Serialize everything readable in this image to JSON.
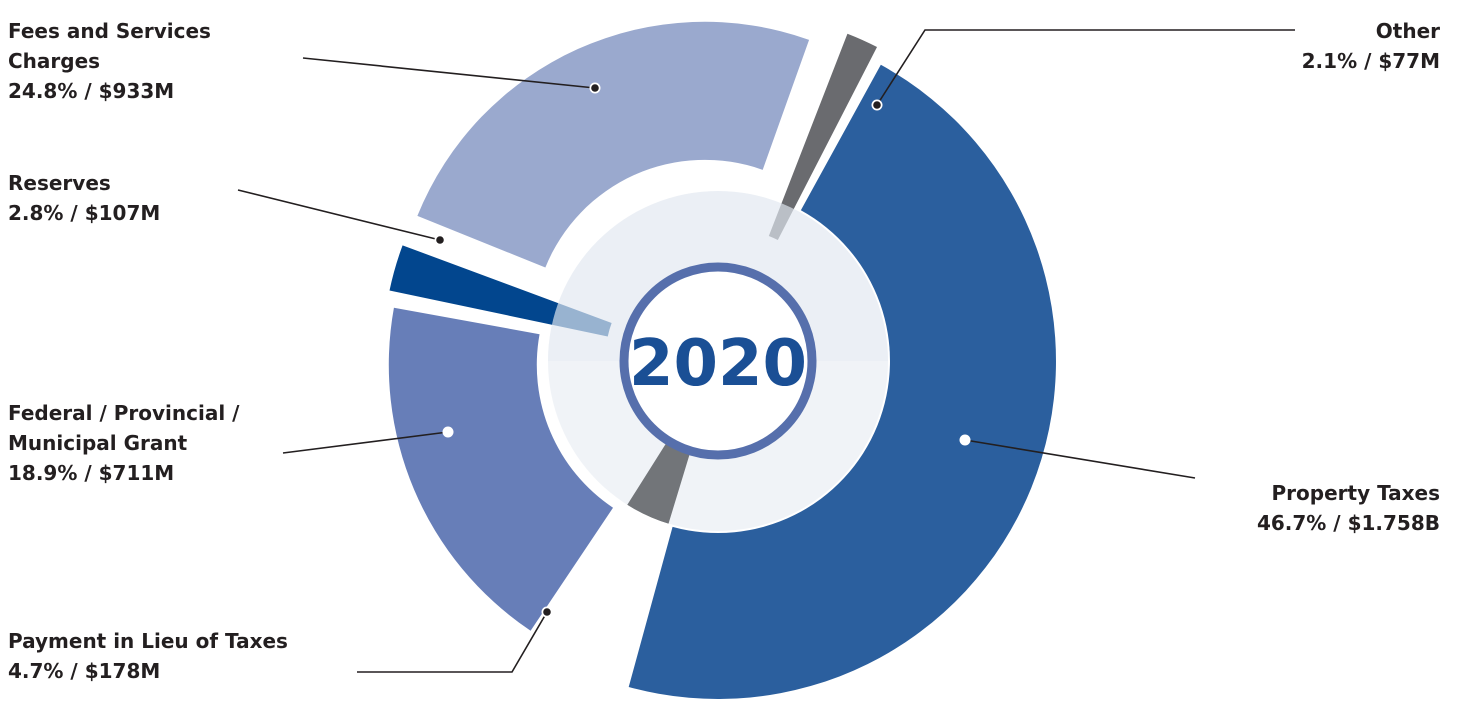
{
  "chart_data": {
    "type": "pie",
    "variant": "exploded-donut",
    "center_label": "2020",
    "slices": [
      {
        "name": "Property Taxes",
        "name_lines": [
          "Property Taxes"
        ],
        "percent": 46.7,
        "amount": "$1.758B",
        "value_label": "46.7% / $1.758B",
        "color": "#2b5f9e",
        "label_side": "right"
      },
      {
        "name": "Payment in Lieu of Taxes",
        "name_lines": [
          "Payment in Lieu of Taxes"
        ],
        "percent": 4.7,
        "amount": "$178M",
        "value_label": "4.7% / $178M",
        "color": "#3e3e3e",
        "label_side": "left"
      },
      {
        "name": "Federal / Provincial / Municipal Grant",
        "name_lines": [
          "Federal / Provincial /",
          "Municipal Grant"
        ],
        "percent": 18.9,
        "amount": "$711M",
        "value_label": "18.9% / $711M",
        "color": "#677eb8",
        "label_side": "left"
      },
      {
        "name": "Reserves",
        "name_lines": [
          "Reserves"
        ],
        "percent": 2.8,
        "amount": "$107M",
        "value_label": "2.8% / $107M",
        "color": "#02468e",
        "label_side": "left"
      },
      {
        "name": "Fees and Services Charges",
        "name_lines": [
          "Fees and Services",
          "Charges"
        ],
        "percent": 24.8,
        "amount": "$933M",
        "value_label": "24.8% / $933M",
        "color": "#9aa9ce",
        "label_side": "left"
      },
      {
        "name": "Other",
        "name_lines": [
          "Other"
        ],
        "percent": 2.1,
        "amount": "$77M",
        "value_label": "2.1% / $77M",
        "color": "#6a6b6f",
        "label_side": "right"
      }
    ]
  },
  "colors": {
    "inner_ring": "#d3dde9",
    "inner_ring_light": "#e6ebf3",
    "center_border": "#566fac",
    "center_text": "#1a4f95",
    "leader_line": "#231f20"
  }
}
